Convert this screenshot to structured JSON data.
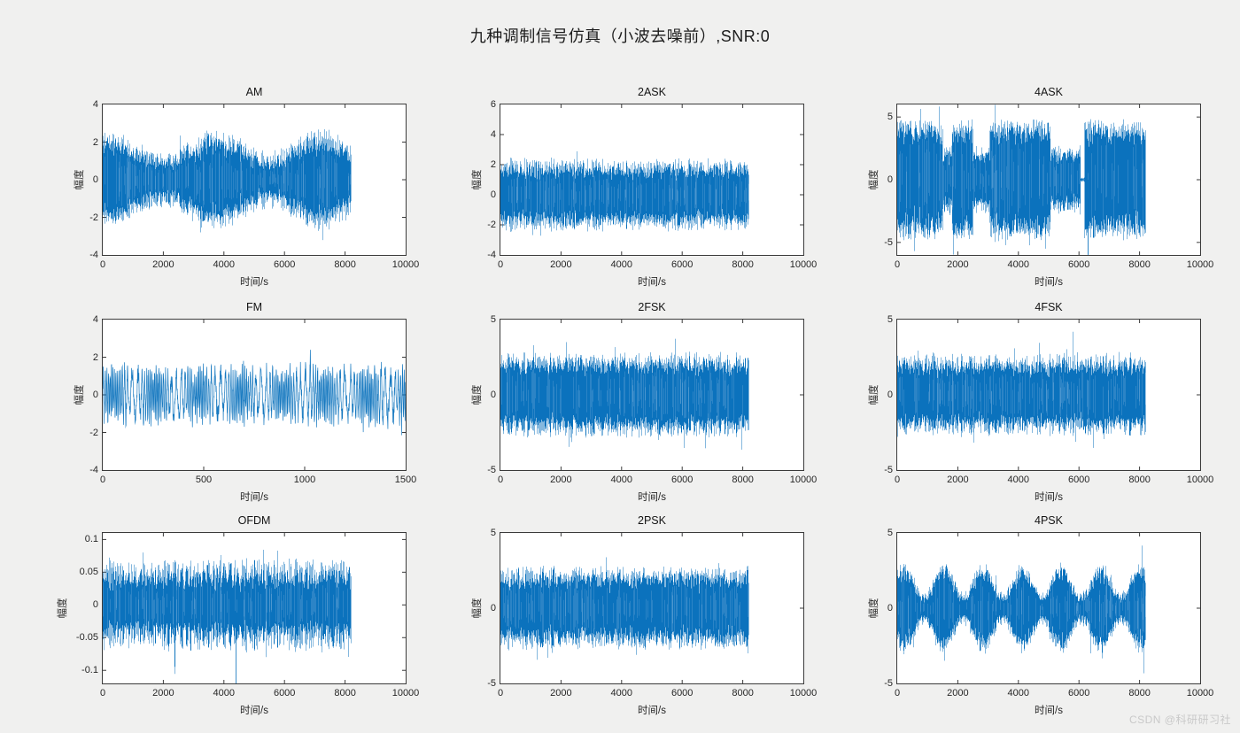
{
  "title": "九种调制信号仿真（小波去噪前）,SNR:0",
  "watermark": "CSDN @科研研习社",
  "colors": {
    "background": "#f0f0ef",
    "plot_background": "#ffffff",
    "axis": "#3a3a3a",
    "tick_text": "#262626",
    "signal": "#0b72bd",
    "signal_light": "#5c9fd3"
  },
  "layout": {
    "grid_rows": 3,
    "grid_cols": 3,
    "grid_on": false,
    "legend": null
  },
  "chart_data": [
    {
      "type": "line",
      "title": "AM",
      "xlabel": "时间/s",
      "ylabel": "幅度",
      "xlim": [
        0,
        10000
      ],
      "ylim": [
        -4,
        4
      ],
      "xtick_values": [
        0,
        2000,
        4000,
        6000,
        8000,
        10000
      ],
      "xtick_labels": [
        "0",
        "2000",
        "4000",
        "6000",
        "8000",
        "10000"
      ],
      "ytick_values": [
        -4,
        -2,
        0,
        2,
        4
      ],
      "ytick_labels": [
        "-4",
        "-2",
        "0",
        "2",
        "4"
      ],
      "signal": {
        "kind": "am",
        "xend": 8200,
        "base": 1.7,
        "depth": 0.6,
        "period": 3500,
        "noise": 0.5,
        "body_amplitude": 2.0,
        "peak_amplitude": 3.7,
        "seed": 101,
        "spikes": []
      }
    },
    {
      "type": "line",
      "title": "2ASK",
      "xlabel": "时间/s",
      "ylabel": "幅度",
      "xlim": [
        0,
        10000
      ],
      "ylim": [
        -4,
        6
      ],
      "xtick_values": [
        0,
        2000,
        4000,
        6000,
        8000,
        10000
      ],
      "xtick_labels": [
        "0",
        "2000",
        "4000",
        "6000",
        "8000",
        "10000"
      ],
      "ytick_values": [
        -4,
        -2,
        0,
        2,
        4,
        6
      ],
      "ytick_labels": [
        "-4",
        "-2",
        "0",
        "2",
        "4",
        "6"
      ],
      "signal": {
        "kind": "uniform",
        "xend": 8200,
        "base": 2.0,
        "noise": 0.5,
        "body_amplitude": 2.5,
        "peak_amplitude": 4.1,
        "seed": 202,
        "spikes": []
      }
    },
    {
      "type": "line",
      "title": "4ASK",
      "xlabel": "时间/s",
      "ylabel": "幅度",
      "xlim": [
        0,
        10000
      ],
      "ylim": [
        -6,
        6
      ],
      "xtick_values": [
        0,
        2000,
        4000,
        6000,
        8000,
        10000
      ],
      "xtick_labels": [
        "0",
        "2000",
        "4000",
        "6000",
        "8000",
        "10000"
      ],
      "ytick_values": [
        -5,
        0,
        5
      ],
      "ytick_labels": [
        "-5",
        "0",
        "5"
      ],
      "signal": {
        "kind": "blocks",
        "xend": 8200,
        "noise": 0.55,
        "segments": [
          [
            0,
            1500,
            4.3
          ],
          [
            1500,
            1800,
            2.4
          ],
          [
            1800,
            2500,
            4.4
          ],
          [
            2500,
            3050,
            2.2
          ],
          [
            3050,
            5050,
            4.5
          ],
          [
            5050,
            6040,
            2.3
          ],
          [
            6040,
            6170,
            0.12
          ],
          [
            6170,
            8200,
            4.4
          ]
        ],
        "body_amplitude": 4.5,
        "peak_amplitude": 6.0,
        "seed": 303,
        "spikes": [
          {
            "x": 6300,
            "y": -6.0
          }
        ]
      }
    },
    {
      "type": "line",
      "title": "FM",
      "xlabel": "时间/s",
      "ylabel": "幅度",
      "xlim": [
        0,
        1500
      ],
      "ylim": [
        -4,
        4
      ],
      "xtick_values": [
        0,
        500,
        1000,
        1500
      ],
      "xtick_labels": [
        "0",
        "500",
        "1000",
        "1500"
      ],
      "ytick_values": [
        -4,
        -2,
        0,
        2,
        4
      ],
      "ytick_labels": [
        "-4",
        "-2",
        "0",
        "2",
        "4"
      ],
      "signal": {
        "kind": "fm",
        "xend": 1500,
        "amp": 1.15,
        "noise": 0.5,
        "carrier": 0.55,
        "fm_depth": 0.35,
        "fm_period": 210,
        "body_amplitude": 1.8,
        "peak_amplitude": 2.9,
        "seed": 404,
        "spikes": []
      }
    },
    {
      "type": "line",
      "title": "2FSK",
      "xlabel": "时间/s",
      "ylabel": "幅度",
      "xlim": [
        0,
        10000
      ],
      "ylim": [
        -5,
        5
      ],
      "xtick_values": [
        0,
        2000,
        4000,
        6000,
        8000,
        10000
      ],
      "xtick_labels": [
        "0",
        "2000",
        "4000",
        "6000",
        "8000",
        "10000"
      ],
      "ytick_values": [
        -5,
        0,
        5
      ],
      "ytick_labels": [
        "-5",
        "0",
        "5"
      ],
      "signal": {
        "kind": "uniform",
        "xend": 8200,
        "base": 2.35,
        "noise": 0.55,
        "body_amplitude": 3.0,
        "peak_amplitude": 4.6,
        "seed": 505,
        "spikes": []
      }
    },
    {
      "type": "line",
      "title": "4FSK",
      "xlabel": "时间/s",
      "ylabel": "幅度",
      "xlim": [
        0,
        10000
      ],
      "ylim": [
        -5,
        5
      ],
      "xtick_values": [
        0,
        2000,
        4000,
        6000,
        8000,
        10000
      ],
      "xtick_labels": [
        "0",
        "2000",
        "4000",
        "6000",
        "8000",
        "10000"
      ],
      "ytick_values": [
        -5,
        0,
        5
      ],
      "ytick_labels": [
        "-5",
        "0",
        "5"
      ],
      "signal": {
        "kind": "uniform",
        "xend": 8200,
        "base": 2.3,
        "noise": 0.55,
        "body_amplitude": 3.0,
        "peak_amplitude": 4.3,
        "seed": 606,
        "spikes": []
      }
    },
    {
      "type": "line",
      "title": "OFDM",
      "xlabel": "时间/s",
      "ylabel": "幅度",
      "xlim": [
        0,
        10000
      ],
      "ylim": [
        -0.12,
        0.11
      ],
      "xtick_values": [
        0,
        2000,
        4000,
        6000,
        8000,
        10000
      ],
      "xtick_labels": [
        "0",
        "2000",
        "4000",
        "6000",
        "8000",
        "10000"
      ],
      "ytick_values": [
        -0.1,
        -0.05,
        0,
        0.05,
        0.1
      ],
      "ytick_labels": [
        "-0.1",
        "-0.05",
        "0",
        "0.05",
        "0.1"
      ],
      "signal": {
        "kind": "uniform",
        "xend": 8200,
        "base": 0.053,
        "noise": 0.02,
        "body_amplitude": 0.06,
        "peak_amplitude": 0.105,
        "seed": 707,
        "spikes": [
          {
            "x": 4400,
            "y": -0.122
          }
        ]
      }
    },
    {
      "type": "line",
      "title": "2PSK",
      "xlabel": "时间/s",
      "ylabel": "幅度",
      "xlim": [
        0,
        10000
      ],
      "ylim": [
        -5,
        5
      ],
      "xtick_values": [
        0,
        2000,
        4000,
        6000,
        8000,
        10000
      ],
      "xtick_labels": [
        "0",
        "2000",
        "4000",
        "6000",
        "8000",
        "10000"
      ],
      "ytick_values": [
        -5,
        0,
        5
      ],
      "ytick_labels": [
        "-5",
        "0",
        "5"
      ],
      "signal": {
        "kind": "uniform",
        "xend": 8200,
        "base": 2.3,
        "noise": 0.55,
        "body_amplitude": 2.9,
        "peak_amplitude": 4.7,
        "seed": 808,
        "spikes": []
      }
    },
    {
      "type": "line",
      "title": "4PSK",
      "xlabel": "时间/s",
      "ylabel": "幅度",
      "xlim": [
        0,
        10000
      ],
      "ylim": [
        -5,
        5
      ],
      "xtick_values": [
        0,
        2000,
        4000,
        6000,
        8000,
        10000
      ],
      "xtick_labels": [
        "0",
        "2000",
        "4000",
        "6000",
        "8000",
        "10000"
      ],
      "ytick_values": [
        -5,
        0,
        5
      ],
      "ytick_labels": [
        "-5",
        "0",
        "5"
      ],
      "signal": {
        "kind": "wavy",
        "xend": 8200,
        "base": 1.8,
        "depth": 1.0,
        "period": 1300,
        "noise": 0.35,
        "body_amplitude": 3.0,
        "peak_amplitude": 4.4,
        "seed": 909,
        "spikes": []
      }
    }
  ]
}
